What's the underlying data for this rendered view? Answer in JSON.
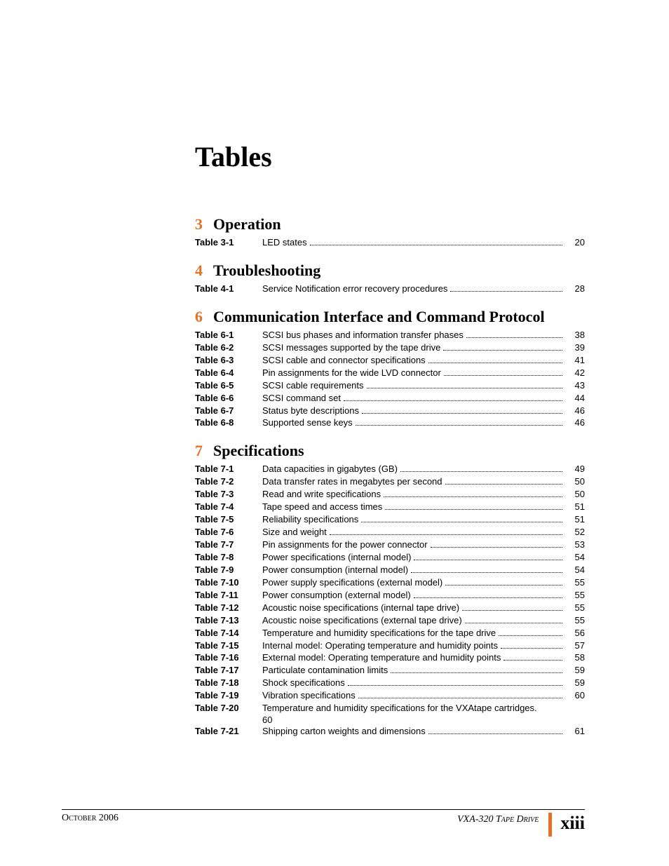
{
  "accent_color": "#e37222",
  "title": "Tables",
  "sections": [
    {
      "num": "3",
      "title": "Operation",
      "entries": [
        {
          "label": "Table 3-1",
          "desc": "LED states",
          "page": "20"
        }
      ]
    },
    {
      "num": "4",
      "title": "Troubleshooting",
      "entries": [
        {
          "label": "Table 4-1",
          "desc": "Service Notification error recovery procedures",
          "page": "28"
        }
      ]
    },
    {
      "num": "6",
      "title": "Communication Interface and Command Protocol",
      "entries": [
        {
          "label": "Table 6-1",
          "desc": "SCSI bus phases and information transfer phases",
          "page": "38"
        },
        {
          "label": "Table 6-2",
          "desc": "SCSI messages supported by the tape drive",
          "page": "39"
        },
        {
          "label": "Table 6-3",
          "desc": "SCSI cable and connector specifications",
          "page": "41"
        },
        {
          "label": "Table 6-4",
          "desc": "Pin assignments for the wide LVD connector",
          "page": "42"
        },
        {
          "label": "Table 6-5",
          "desc": "SCSI cable requirements",
          "page": "43"
        },
        {
          "label": "Table 6-6",
          "desc": "SCSI command set",
          "page": "44"
        },
        {
          "label": "Table 6-7",
          "desc": "Status byte descriptions",
          "page": "46"
        },
        {
          "label": "Table 6-8",
          "desc": "Supported sense keys",
          "page": "46"
        }
      ]
    },
    {
      "num": "7",
      "title": "Specifications",
      "entries": [
        {
          "label": "Table 7-1",
          "desc": "Data capacities in gigabytes (GB)",
          "page": "49"
        },
        {
          "label": "Table 7-2",
          "desc": "Data transfer rates in megabytes per second",
          "page": "50"
        },
        {
          "label": "Table 7-3",
          "desc": "Read and write specifications",
          "page": "50"
        },
        {
          "label": "Table 7-4",
          "desc": "Tape speed and access times",
          "page": "51"
        },
        {
          "label": "Table 7-5",
          "desc": "Reliability specifications",
          "page": "51"
        },
        {
          "label": "Table 7-6",
          "desc": "Size and weight",
          "page": "52"
        },
        {
          "label": "Table 7-7",
          "desc": "Pin assignments for the power connector",
          "page": "53"
        },
        {
          "label": "Table 7-8",
          "desc": "Power specifications (internal model)",
          "page": "54"
        },
        {
          "label": "Table 7-9",
          "desc": "Power consumption (internal model)",
          "page": "54"
        },
        {
          "label": "Table 7-10",
          "desc": "Power supply specifications (external model)",
          "page": "55"
        },
        {
          "label": "Table 7-11",
          "desc": "Power consumption (external model)",
          "page": "55"
        },
        {
          "label": "Table 7-12",
          "desc": "Acoustic noise specifications (internal tape drive)",
          "page": "55"
        },
        {
          "label": "Table 7-13",
          "desc": "Acoustic noise specifications (external tape drive)",
          "page": "55"
        },
        {
          "label": "Table 7-14",
          "desc": "Temperature and humidity specifications for the tape drive",
          "page": "56"
        },
        {
          "label": "Table 7-15",
          "desc": "Internal model: Operating temperature and humidity points",
          "page": "57"
        },
        {
          "label": "Table 7-16",
          "desc": "External model: Operating temperature and humidity points",
          "page": "58"
        },
        {
          "label": "Table 7-17",
          "desc": "Particulate contamination limits",
          "page": "59"
        },
        {
          "label": "Table 7-18",
          "desc": "Shock specifications",
          "page": "59"
        },
        {
          "label": "Table 7-19",
          "desc": "Vibration specifications",
          "page": "60"
        },
        {
          "label": "Table 7-20",
          "desc": "Temperature and humidity specifications for the VXAtape cartridges.",
          "nopage": true,
          "cont": "60"
        },
        {
          "label": "Table 7-21",
          "desc": "Shipping carton weights and dimensions",
          "page": "61"
        }
      ]
    }
  ],
  "footer": {
    "date": "October 2006",
    "product": "VXA-320 Tape Drive",
    "page": "xiii"
  }
}
